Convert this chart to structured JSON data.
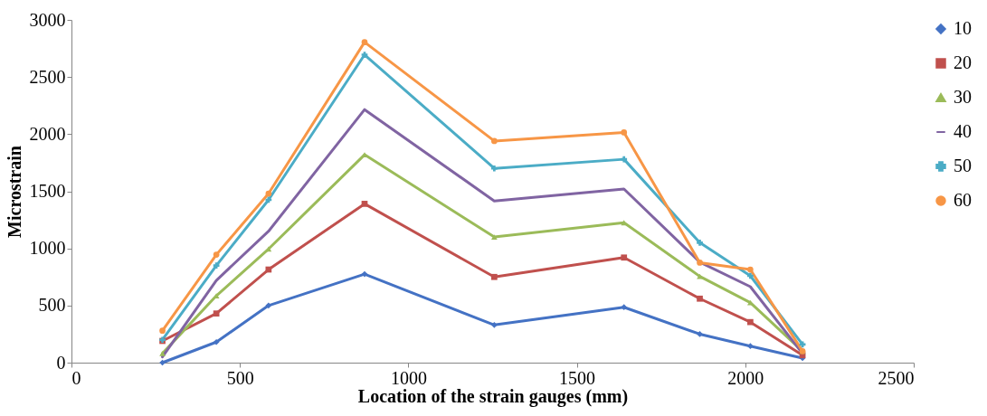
{
  "chart_data": {
    "type": "line",
    "xlabel": "Location of the strain gauges (mm)",
    "ylabel": "Microstrain",
    "x": [
      270,
      430,
      585,
      870,
      1255,
      1640,
      1865,
      2015,
      2170
    ],
    "xlim": [
      0,
      2500
    ],
    "xticks": [
      0,
      500,
      1000,
      1500,
      2000,
      2500
    ],
    "ylim": [
      0,
      3000
    ],
    "yticks": [
      0,
      500,
      1000,
      1500,
      2000,
      2500,
      3000
    ],
    "grid": false,
    "legend": "right",
    "series": [
      {
        "name": "10",
        "color": "#4472c4",
        "marker": "diamond",
        "values": [
          0,
          180,
          500,
          775,
          330,
          485,
          250,
          145,
          40
        ]
      },
      {
        "name": "20",
        "color": "#c0504d",
        "marker": "square",
        "values": [
          190,
          430,
          815,
          1390,
          750,
          920,
          560,
          355,
          65
        ]
      },
      {
        "name": "30",
        "color": "#9bbb59",
        "marker": "triangle",
        "values": [
          80,
          585,
          995,
          1820,
          1100,
          1225,
          755,
          525,
          100
        ]
      },
      {
        "name": "40",
        "color": "#8064a2",
        "marker": "none",
        "values": [
          50,
          720,
          1150,
          2215,
          1415,
          1520,
          880,
          665,
          80
        ]
      },
      {
        "name": "50",
        "color": "#4bacc6",
        "marker": "cross",
        "values": [
          200,
          850,
          1425,
          2695,
          1700,
          1780,
          1050,
          760,
          160
        ]
      },
      {
        "name": "60",
        "color": "#f79646",
        "marker": "circle",
        "values": [
          280,
          945,
          1480,
          2805,
          1940,
          2015,
          875,
          815,
          100
        ]
      }
    ]
  }
}
